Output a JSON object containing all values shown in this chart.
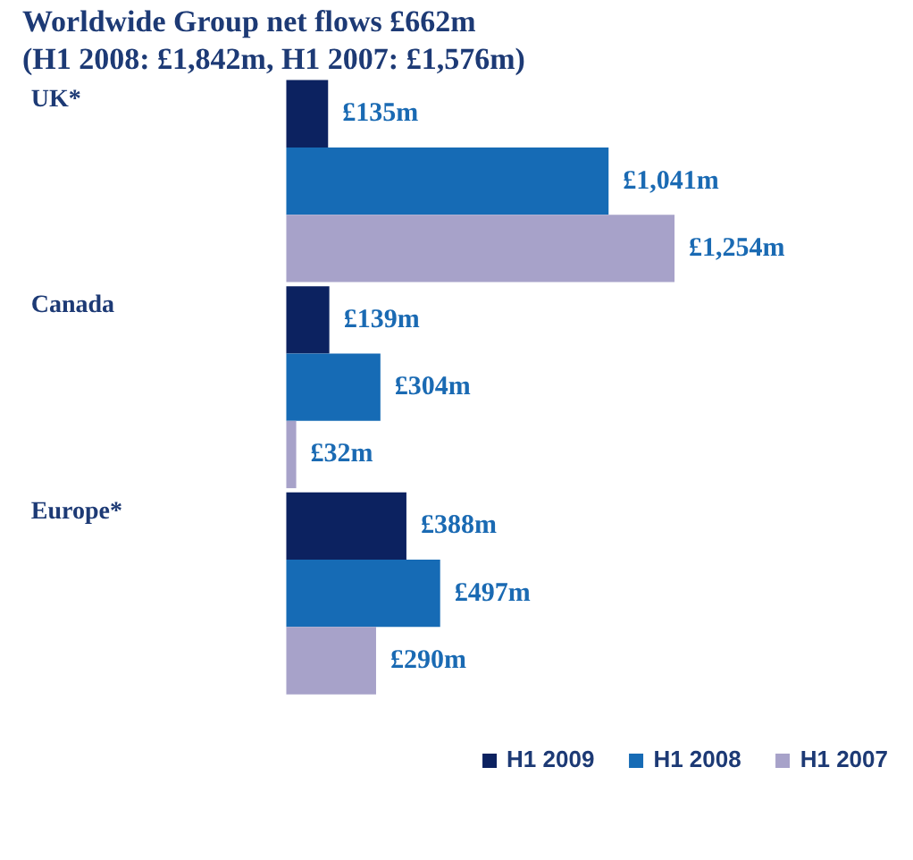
{
  "chart_data": {
    "type": "bar",
    "orientation": "horizontal",
    "tick_labels": false,
    "title": "Worldwide Group net flows £662m",
    "subtitle": "(H1 2008: £1,842m, H1 2007: £1,576m)",
    "categories": [
      "UK*",
      "Canada",
      "Europe*"
    ],
    "series": [
      {
        "name": "H1 2009",
        "color": "#0c2260",
        "values": [
          135,
          139,
          388
        ],
        "value_labels": [
          "£135m",
          "£139m",
          "£388m"
        ]
      },
      {
        "name": "H1 2008",
        "color": "#166bb5",
        "values": [
          1041,
          304,
          497
        ],
        "value_labels": [
          "£1,041m",
          "£304m",
          "£497m"
        ]
      },
      {
        "name": "H1 2007",
        "color": "#a7a2c9",
        "values": [
          1254,
          32,
          290
        ],
        "value_labels": [
          "£1,254m",
          "£32m",
          "£290m"
        ]
      }
    ],
    "legend": "bottom right"
  }
}
